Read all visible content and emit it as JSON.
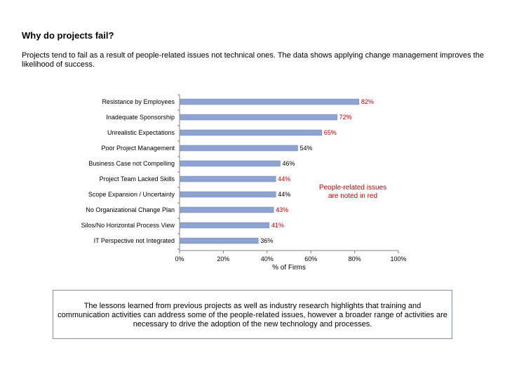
{
  "header": {
    "title": "Why do projects fail?",
    "intro": "Projects tend to fail as a result of people-related issues not technical ones.  The data shows applying change management improves the likelihood of success."
  },
  "chart_data": {
    "type": "bar",
    "orientation": "horizontal",
    "categories": [
      "Resistance by Employees",
      "Inadequate Sponsorship",
      "Unrealistic Expectations",
      "Poor Project Management",
      "Business Case not Compelling",
      "Project Team Lacked Skills",
      "Scope Expansion / Uncertainty",
      "No Organizational Change Plan",
      "Silos/No Horizontal Process View",
      "IT Perspective not Integrated"
    ],
    "values": [
      82,
      72,
      65,
      54,
      46,
      44,
      44,
      43,
      41,
      36
    ],
    "data_labels": [
      "82%",
      "72%",
      "65%",
      "54%",
      "46%",
      "44%",
      "44%",
      "43%",
      "41%",
      "36%"
    ],
    "people_related": [
      true,
      true,
      true,
      false,
      false,
      true,
      false,
      true,
      true,
      false
    ],
    "xlabel": "% of Firms",
    "xlim": [
      0,
      100
    ],
    "xticks": [
      0,
      20,
      40,
      60,
      80,
      100
    ],
    "xtick_labels": [
      "0%",
      "20%",
      "40%",
      "60%",
      "80%",
      "100%"
    ],
    "annotation": "People-related issues are noted in red",
    "colors": {
      "bar": "#8ea3cf",
      "bar_edge": "#6f86b8",
      "highlight": "#c00000",
      "normal_label": "#000000",
      "axis": "#808080"
    }
  },
  "footer": {
    "note": "The lessons learned from previous projects as well as industry research highlights that training and communication activities can address some of the people-related issues, however a broader range of activities are necessary to drive the adoption of the new technology and processes."
  }
}
